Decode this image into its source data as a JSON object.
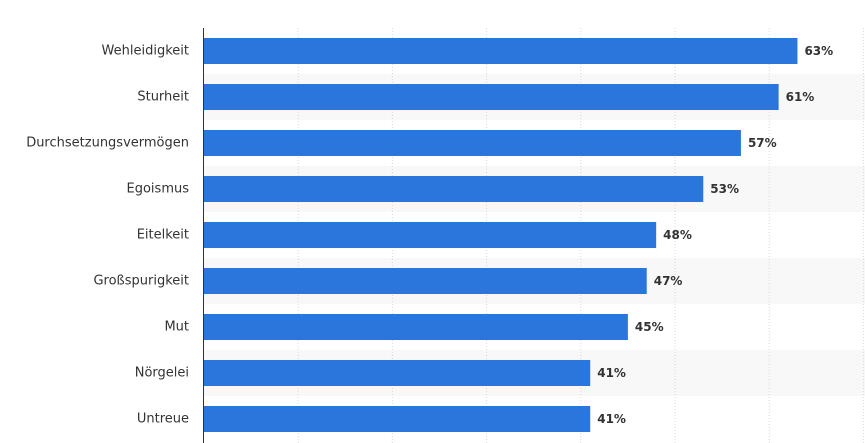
{
  "chart_data": {
    "type": "bar",
    "orientation": "horizontal",
    "categories": [
      "Wehleidigkeit",
      "Sturheit",
      "Durchsetzungsvermögen",
      "Egoismus",
      "Eitelkeit",
      "Großspurigkeit",
      "Mut",
      "Nörgelei",
      "Untreue"
    ],
    "values": [
      63,
      61,
      57,
      53,
      48,
      47,
      45,
      41,
      41
    ],
    "value_labels": [
      "63%",
      "61%",
      "57%",
      "53%",
      "48%",
      "47%",
      "45%",
      "41%",
      "41%"
    ],
    "unit": "%",
    "xlim": [
      0,
      70
    ],
    "grid": true,
    "title": "",
    "xlabel": "",
    "ylabel": ""
  },
  "colors": {
    "bar": "#2a76dd",
    "band": "#f8f8f8",
    "grid": "#d8d8d8",
    "axis": "#333333",
    "text": "#333333"
  }
}
